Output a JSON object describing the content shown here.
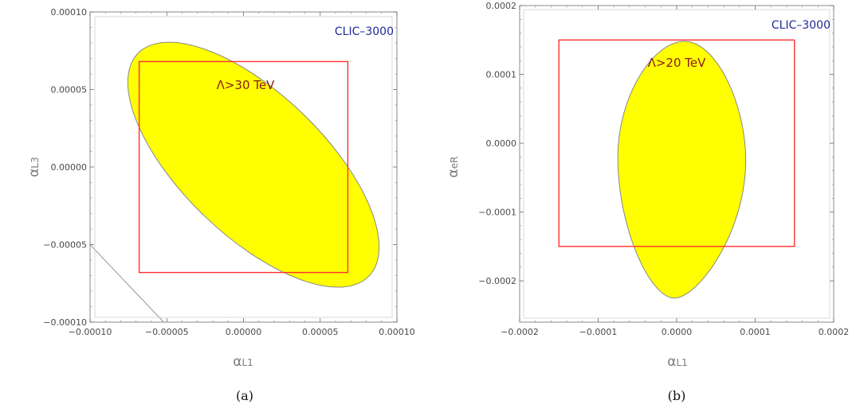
{
  "chart_data": [
    {
      "type": "area",
      "panel": "(a)",
      "collider_label": "CLIC–3000",
      "annotation": "Λ>30 TeV",
      "xlabel_main": "α",
      "xlabel_sub": "L1",
      "ylabel_main": "α",
      "ylabel_sub": "L3",
      "xlim": [
        -0.0001,
        0.0001
      ],
      "ylim": [
        -0.0001,
        0.0001
      ],
      "xticks": [
        -0.0001,
        -5e-05,
        0.0,
        5e-05,
        0.0001
      ],
      "xtick_labels": [
        "−0.00010",
        "−0.00005",
        "0.00000",
        "0.00005",
        "0.00010"
      ],
      "yticks": [
        -0.0001,
        -5e-05,
        0.0,
        5e-05,
        0.0001
      ],
      "ytick_labels": [
        "−0.00010",
        "−0.00005",
        "0.00000",
        "0.00005",
        "0.00010"
      ],
      "region": {
        "shape": "ellipse",
        "center": [
          6.5e-06,
          1.5e-06
        ],
        "semi_axes": [
          0.000104,
          4.6e-05
        ],
        "rotation_deg": -44
      },
      "box": {
        "x": [
          -6.8e-05,
          6.8e-05
        ],
        "y": [
          -6.8e-05,
          6.8e-05
        ]
      },
      "extra_line": [
        [
          -0.0001,
          -5e-05
        ],
        [
          -5.2e-05,
          -0.0001
        ]
      ],
      "colors": {
        "fill": "#ffff00",
        "outline": "#888888",
        "box": "#ff3030"
      }
    },
    {
      "type": "area",
      "panel": "(b)",
      "collider_label": "CLIC–3000",
      "annotation": "Λ>20 TeV",
      "xlabel_main": "α",
      "xlabel_sub": "L1",
      "ylabel_main": "α",
      "ylabel_sub": "eR",
      "xlim": [
        -0.0002,
        0.0002
      ],
      "ylim": [
        -0.00026,
        0.0002
      ],
      "xticks": [
        -0.0002,
        -0.0001,
        0.0,
        0.0001,
        0.0002
      ],
      "xtick_labels": [
        "−0.0002",
        "−0.0001",
        "0.0000",
        "0.0001",
        "0.0002"
      ],
      "yticks": [
        -0.0002,
        -0.0001,
        0.0,
        0.0001,
        0.0002
      ],
      "ytick_labels": [
        "−0.0002",
        "−0.0001",
        "0.0000",
        "0.0001",
        "0.0002"
      ],
      "region": {
        "shape": "teardrop",
        "top": [
          1e-05,
          0.000148
        ],
        "bottom": [
          -3e-06,
          -0.000225
        ],
        "max_right": [
          8.8e-05,
          -2.5e-05
        ],
        "max_left": [
          -7.5e-05,
          -2e-05
        ]
      },
      "box": {
        "x": [
          -0.00015,
          0.00015
        ],
        "y": [
          -0.00015,
          0.00015
        ]
      },
      "colors": {
        "fill": "#ffff00",
        "outline": "#888888",
        "box": "#ff3030"
      }
    }
  ]
}
